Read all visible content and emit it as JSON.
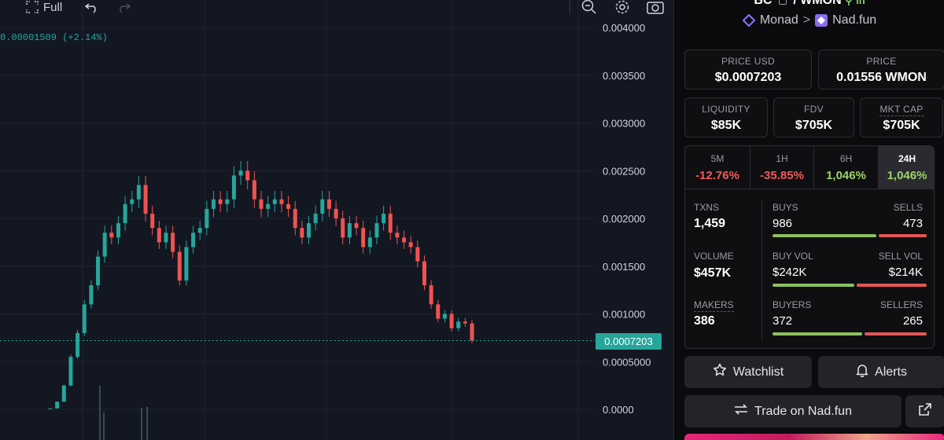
{
  "toolbar": {
    "full_label": "Full",
    "icons": [
      "fullscreen-icon",
      "undo-icon",
      "redo-icon",
      "zoom-search-icon",
      "settings-gear-icon",
      "camera-icon"
    ]
  },
  "chart": {
    "change_readout": "0.00001509 (+2.14%)",
    "current_price_label": "0.0007203",
    "y_axis_labels": [
      "0.004000",
      "0.003500",
      "0.003000",
      "0.002500",
      "0.002000",
      "0.001500",
      "0.001000",
      "0.0005000",
      "0.0000"
    ],
    "up_color": "#26a69a",
    "down_color": "#ef5350"
  },
  "chart_data": {
    "type": "line",
    "title": "",
    "xlabel": "",
    "ylabel": "",
    "ylim": [
      0,
      0.004
    ],
    "current_price": 0.0007203,
    "series": [
      {
        "name": "",
        "values": [
          1e-05,
          8e-05,
          0.00025,
          0.00055,
          0.0008,
          0.0011,
          0.0013,
          0.0016,
          0.00185,
          0.0018,
          0.00195,
          0.00215,
          0.0022,
          0.00235,
          0.00205,
          0.0019,
          0.00175,
          0.00185,
          0.00165,
          0.00135,
          0.0017,
          0.00185,
          0.0019,
          0.0021,
          0.0022,
          0.00215,
          0.0022,
          0.00245,
          0.0025,
          0.0024,
          0.0022,
          0.0021,
          0.00215,
          0.0022,
          0.00215,
          0.0021,
          0.0019,
          0.0018,
          0.00195,
          0.00205,
          0.0022,
          0.0021,
          0.002,
          0.0018,
          0.00195,
          0.0019,
          0.0017,
          0.0018,
          0.00195,
          0.00205,
          0.00185,
          0.0018,
          0.00175,
          0.0017,
          0.00155,
          0.0013,
          0.0011,
          0.00095,
          0.001,
          0.00085,
          0.00092,
          0.0009,
          0.00072
        ]
      }
    ],
    "grid": true
  },
  "pair": {
    "title": "BC",
    "quote": "/ WMON",
    "pin_label": "in",
    "chain": "Monad",
    "separator": ">",
    "dex": "Nad.fun"
  },
  "price_cards": [
    {
      "label": "PRICE USD",
      "value": "$0.0007203"
    },
    {
      "label": "PRICE",
      "value": "0.01556 WMON"
    }
  ],
  "metric_cards": [
    {
      "label": "LIQUIDITY",
      "value": "$85K"
    },
    {
      "label": "FDV",
      "value": "$705K"
    },
    {
      "label": "MKT CAP",
      "value": "$705K"
    }
  ],
  "timeframes": [
    {
      "name": "5M",
      "change": "-12.76%",
      "direction": "neg"
    },
    {
      "name": "1H",
      "change": "-35.85%",
      "direction": "neg"
    },
    {
      "name": "6H",
      "change": "1,046%",
      "direction": "pos"
    },
    {
      "name": "24H",
      "change": "1,046%",
      "direction": "pos",
      "active": true
    }
  ],
  "stats": {
    "txns_label": "TXNS",
    "txns_value": "1,459",
    "volume_label": "VOLUME",
    "volume_value": "$457K",
    "makers_label": "MAKERS",
    "makers_value": "386",
    "buys_label": "BUYS",
    "buys_value": "986",
    "buys_ratio": 0.676,
    "sells_label": "SELLS",
    "sells_value": "473",
    "buyvol_label": "BUY VOL",
    "buyvol_value": "$242K",
    "buyvol_ratio": 0.53,
    "sellvol_label": "SELL VOL",
    "sellvol_value": "$214K",
    "buyers_label": "BUYERS",
    "buyers_value": "372",
    "buyers_ratio": 0.584,
    "sellers_label": "SELLERS",
    "sellers_value": "265"
  },
  "actions": {
    "watchlist_label": "Watchlist",
    "alerts_label": "Alerts",
    "trade_label": "Trade on Nad.fun"
  },
  "colors": {
    "accent_green": "#26a69a",
    "buy_bar": "#8cc061",
    "sell_bar": "#e35757",
    "monad_purple": "#8b6cf0"
  }
}
